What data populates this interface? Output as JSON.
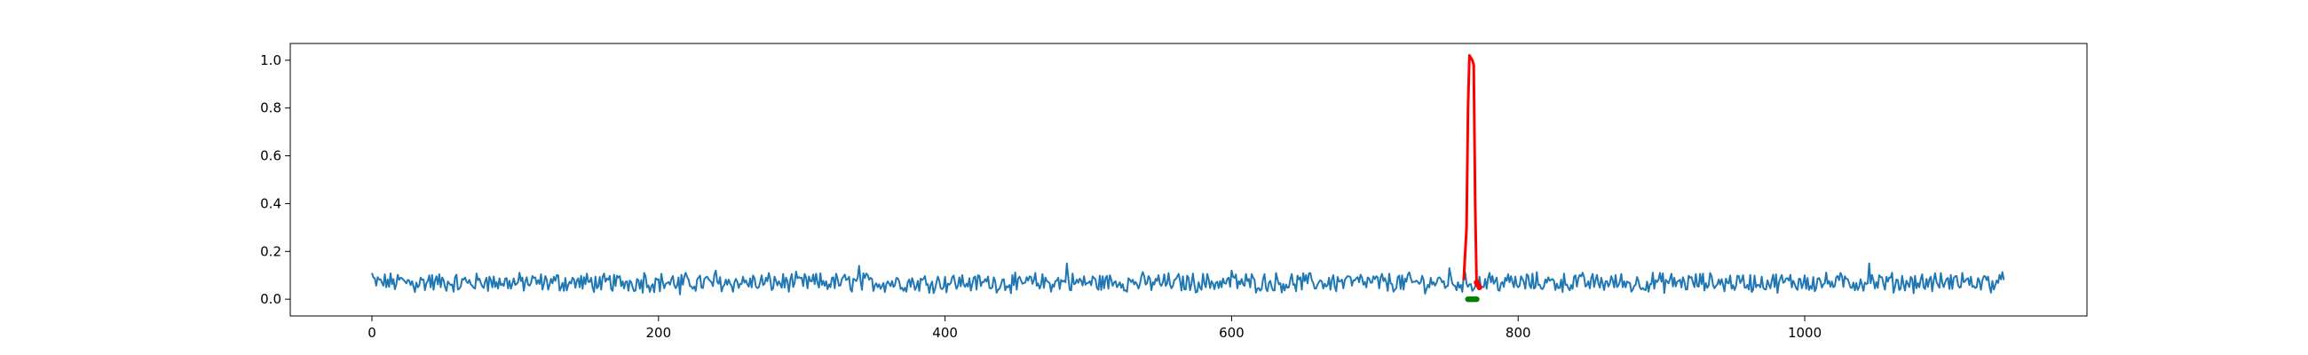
{
  "chart_data": {
    "type": "line",
    "title": "",
    "xlabel": "",
    "ylabel": "",
    "xlim": [
      -57,
      1197
    ],
    "ylim": [
      -0.07,
      1.07
    ],
    "xticks": [
      0,
      200,
      400,
      600,
      800,
      1000
    ],
    "xtick_labels": [
      "0",
      "200",
      "400",
      "600",
      "800",
      "1000"
    ],
    "yticks": [
      0.0,
      0.2,
      0.4,
      0.6,
      0.8,
      1.0
    ],
    "ytick_labels": [
      "0.0",
      "0.2",
      "0.4",
      "0.6",
      "0.8",
      "1.0"
    ],
    "grid": false,
    "legend": "none",
    "series": [
      {
        "style": "line",
        "color": "#1f77b4",
        "x_start": 0,
        "x_step": 1,
        "count": 1140,
        "description_of_values": "noise around 0.07 (range approx. 0.0 to 0.15)",
        "mean": 0.07,
        "amplitude": 0.035,
        "samples": [
          [
            0,
            0.11
          ],
          [
            10,
            0.05
          ],
          [
            20,
            0.09
          ],
          [
            30,
            0.03
          ],
          [
            40,
            0.1
          ],
          [
            60,
            0.04
          ],
          [
            80,
            0.09
          ],
          [
            100,
            0.06
          ],
          [
            130,
            0.1
          ],
          [
            160,
            0.04
          ],
          [
            190,
            0.11
          ],
          [
            215,
            0.02
          ],
          [
            240,
            0.12
          ],
          [
            270,
            0.05
          ],
          [
            300,
            0.09
          ],
          [
            340,
            0.14
          ],
          [
            380,
            0.05
          ],
          [
            420,
            0.09
          ],
          [
            450,
            0.04
          ],
          [
            485,
            0.15
          ],
          [
            520,
            0.05
          ],
          [
            560,
            0.08
          ],
          [
            600,
            0.12
          ],
          [
            640,
            0.05
          ],
          [
            680,
            0.09
          ],
          [
            720,
            0.04
          ],
          [
            752,
            0.13
          ],
          [
            760,
            0.06
          ],
          [
            780,
            0.11
          ],
          [
            800,
            0.05
          ],
          [
            840,
            0.1
          ],
          [
            880,
            0.04
          ],
          [
            920,
            0.09
          ],
          [
            960,
            0.06
          ],
          [
            1000,
            0.1
          ],
          [
            1045,
            0.15
          ],
          [
            1080,
            0.05
          ],
          [
            1110,
            0.11
          ],
          [
            1139,
            0.08
          ]
        ]
      },
      {
        "style": "line",
        "color": "#ff0000",
        "x": [
          762,
          764,
          765,
          766,
          767,
          768,
          769,
          770,
          771,
          772,
          773
        ],
        "y": [
          0.08,
          0.3,
          0.8,
          1.02,
          1.01,
          1.0,
          0.98,
          0.4,
          0.06,
          0.05,
          0.04
        ]
      },
      {
        "style": "markers",
        "color": "#008000",
        "x": [
          765,
          766,
          767,
          768,
          769,
          770,
          771
        ],
        "y": [
          0.0,
          0.0,
          0.0,
          0.0,
          0.0,
          0.0,
          0.0
        ]
      },
      {
        "style": "markers",
        "color": "#ff0000",
        "x": [
          771,
          772,
          773
        ],
        "y": [
          0.07,
          0.06,
          0.05
        ]
      }
    ]
  }
}
